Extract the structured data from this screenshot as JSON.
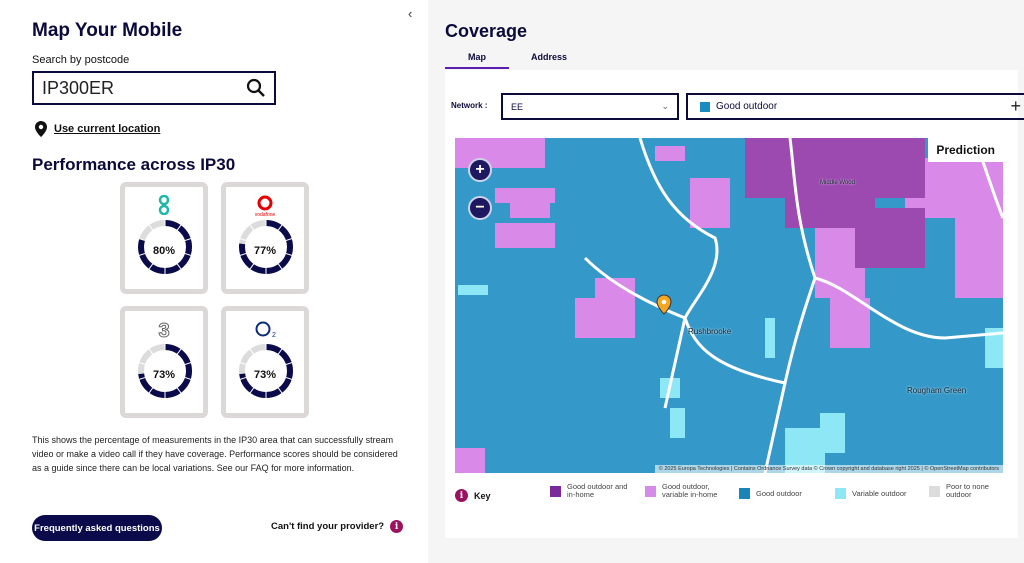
{
  "left": {
    "title": "Map Your Mobile",
    "search_label": "Search by postcode",
    "search_value": "IP300ER",
    "location_link": "Use current location",
    "performance_title": "Performance across IP30",
    "providers": [
      {
        "name": "EE",
        "percent": 80,
        "label": "80%"
      },
      {
        "name": "Vodafone",
        "percent": 77,
        "label": "77%"
      },
      {
        "name": "Three",
        "percent": 73,
        "label": "73%"
      },
      {
        "name": "O2",
        "percent": 73,
        "label": "73%"
      }
    ],
    "description": "This shows the percentage of measurements in the IP30 area that can successfully stream video or make a video call if they have coverage. Performance scores should be considered as a guide since there can be local variations. See our FAQ for more information.",
    "faq_button": "Frequently asked questions",
    "provider_link": "Can't find your provider?"
  },
  "right": {
    "title": "Coverage",
    "tabs": [
      {
        "label": "Map",
        "active": true
      },
      {
        "label": "Address",
        "active": false
      }
    ],
    "network_label": "Network :",
    "network_value": "EE",
    "filter_value": "Good outdoor",
    "prediction_label": "Prediction",
    "places": {
      "rushbrooke": "Rushbrooke",
      "rougham": "Rougham Green",
      "middle_wood": "Middle Wood"
    },
    "attribution": "© 2025 Europa Technologies | Contains Ordnance Survey data © Crown copyright and database right 2025 | © OpenStreetMap contributors",
    "key_label": "Key",
    "key": [
      {
        "label": "Good outdoor and in-home",
        "color": "#7b2a9b"
      },
      {
        "label": "Good outdoor, variable in-home",
        "color": "#d58ce8"
      },
      {
        "label": "Good outdoor",
        "color": "#1b84b8"
      },
      {
        "label": "Variable outdoor",
        "color": "#8ee7f5"
      },
      {
        "label": "Poor to none outdoor",
        "color": "#dcdcdc"
      }
    ]
  }
}
